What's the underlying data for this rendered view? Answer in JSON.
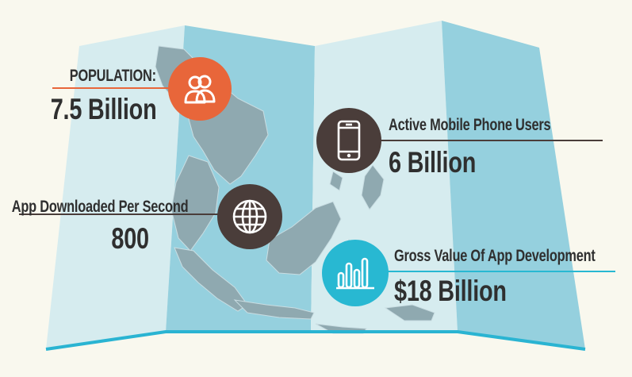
{
  "colors": {
    "background": "#f9f8ee",
    "map_light": "#d6ecef",
    "map_blue": "#95d0de",
    "land": "#8fa9b0",
    "bottom_edge": "#2ab4d2",
    "orange": "#e8663a",
    "dark": "#4a3d3a",
    "teal": "#28b8d2",
    "text": "#2f2f2f"
  },
  "stats": {
    "population": {
      "label": "POPULATION:",
      "value": "7.5 Billion",
      "icon": "users-icon"
    },
    "mobile_users": {
      "label": "Active Mobile Phone Users",
      "value": "6 Billion",
      "icon": "smartphone-icon"
    },
    "app_downloads": {
      "label": "App Downloaded Per Second",
      "value": "800",
      "icon": "globe-icon"
    },
    "app_value": {
      "label": "Gross Value Of App Development",
      "value": "$18 Billion",
      "icon": "bar-chart-icon"
    }
  }
}
